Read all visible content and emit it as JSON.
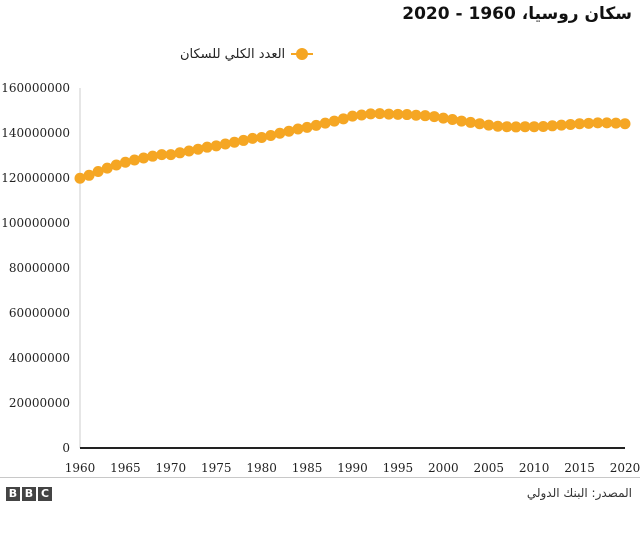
{
  "title": "سكان روسيا، 1960 - 2020",
  "source": "المصدر: البنك الدولي",
  "logo": [
    "B",
    "B",
    "C"
  ],
  "chart_data": {
    "type": "line",
    "x": [
      1960,
      1961,
      1962,
      1963,
      1964,
      1965,
      1966,
      1967,
      1968,
      1969,
      1970,
      1971,
      1972,
      1973,
      1974,
      1975,
      1976,
      1977,
      1978,
      1979,
      1980,
      1981,
      1982,
      1983,
      1984,
      1985,
      1986,
      1987,
      1988,
      1989,
      1990,
      1991,
      1992,
      1993,
      1994,
      1995,
      1996,
      1997,
      1998,
      1999,
      2000,
      2001,
      2002,
      2003,
      2004,
      2005,
      2006,
      2007,
      2008,
      2009,
      2010,
      2011,
      2012,
      2013,
      2014,
      2015,
      2016,
      2017,
      2018,
      2019,
      2020
    ],
    "series": [
      {
        "name": "العدد الكلي للسكان",
        "color": "#f5a623",
        "values": [
          119900000,
          121200000,
          122900000,
          124400000,
          125800000,
          127000000,
          128000000,
          128900000,
          129700000,
          130400000,
          130400000,
          131200000,
          132000000,
          132800000,
          133700000,
          134300000,
          135100000,
          135900000,
          136700000,
          137600000,
          138000000,
          138900000,
          139900000,
          140800000,
          141800000,
          142500000,
          143400000,
          144400000,
          145300000,
          146300000,
          147500000,
          148000000,
          148500000,
          148600000,
          148400000,
          148300000,
          148200000,
          147900000,
          147700000,
          147300000,
          146600000,
          146000000,
          145300000,
          144700000,
          144100000,
          143500000,
          143000000,
          142800000,
          142700000,
          142800000,
          142800000,
          142900000,
          143200000,
          143500000,
          143800000,
          144100000,
          144300000,
          144500000,
          144500000,
          144400000,
          144100000
        ]
      }
    ],
    "ylim": [
      0,
      160000000
    ],
    "y_ticks": [
      "0",
      "20000000",
      "40000000",
      "60000000",
      "80000000",
      "100000000",
      "120000000",
      "140000000",
      "160000000"
    ],
    "y_tick_values": [
      0,
      20000000,
      40000000,
      60000000,
      80000000,
      100000000,
      120000000,
      140000000,
      160000000
    ],
    "x_ticks": [
      "1960",
      "1965",
      "1970",
      "1975",
      "1980",
      "1985",
      "1990",
      "1995",
      "2000",
      "2005",
      "2010",
      "2015",
      "2020"
    ],
    "x_tick_values": [
      1960,
      1965,
      1970,
      1975,
      1980,
      1985,
      1990,
      1995,
      2000,
      2005,
      2010,
      2015,
      2020
    ],
    "xlim": [
      1960,
      2020
    ],
    "grid": false,
    "legend_position": "top"
  }
}
